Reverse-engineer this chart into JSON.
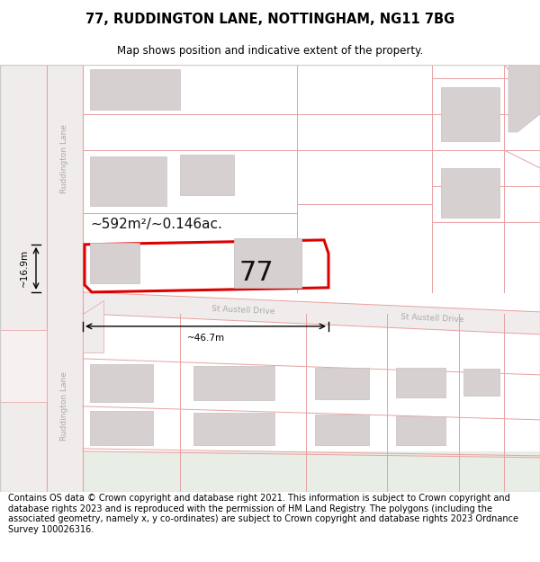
{
  "title": "77, RUDDINGTON LANE, NOTTINGHAM, NG11 7BG",
  "subtitle": "Map shows position and indicative extent of the property.",
  "footer": "Contains OS data © Crown copyright and database right 2021. This information is subject to Crown copyright and database rights 2023 and is reproduced with the permission of HM Land Registry. The polygons (including the associated geometry, namely x, y co-ordinates) are subject to Crown copyright and database rights 2023 Ordnance Survey 100026316.",
  "map_bg": "#f7f0f0",
  "road_color": "#e8a0a0",
  "road_fill": "#f7f0f0",
  "building_fill": "#d6d0d0",
  "building_edge": "#c8c0c0",
  "highlight_color": "#dd0000",
  "highlight_fill": "#ffffff",
  "area_label": "~592m²/~0.146ac.",
  "number_label": "77",
  "width_label": "~46.7m",
  "height_label": "~16.9m",
  "road_label_st_austell_left": "St Austell Drive",
  "road_label_st_austell_right": "St Austell Drive",
  "street_label_top": "Ruddington Lane",
  "street_label_bottom": "Ruddington Lane",
  "title_fontsize": 10.5,
  "subtitle_fontsize": 8.5,
  "footer_fontsize": 7.0,
  "green_fill": "#e8ede6"
}
